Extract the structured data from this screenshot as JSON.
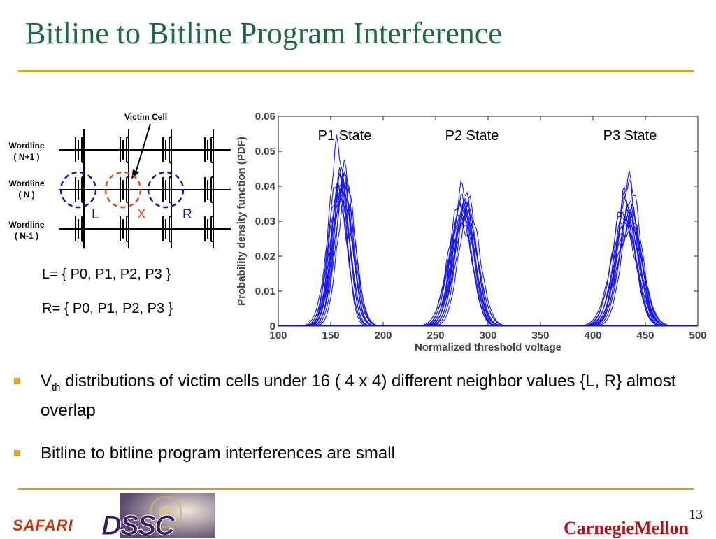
{
  "slide": {
    "title": "Bitline to Bitline Program Interference",
    "page_number": "13"
  },
  "diagram": {
    "victim_label": "Victim Cell",
    "wordline_top": [
      "Wordline",
      "( N+1 )"
    ],
    "wordline_mid": [
      "Wordline",
      "( N )"
    ],
    "wordline_bot": [
      "Wordline",
      "( N-1 )"
    ],
    "cell_left": "L",
    "cell_victim": "X",
    "cell_right": "R",
    "colors": {
      "neighbor": "#1a1aa0",
      "victim": "#e0501e"
    }
  },
  "sets": {
    "left": "L= { P0, P1, P2, P3 }",
    "right": "R= { P0, P1, P2, P3 }"
  },
  "chart_data": {
    "type": "line",
    "xlabel": "Normalized threshold voltage",
    "ylabel": "Probability density function (PDF)",
    "xlim": [
      100,
      500
    ],
    "ylim": [
      0,
      0.06
    ],
    "xticks": [
      100,
      150,
      200,
      250,
      300,
      350,
      400,
      450,
      500
    ],
    "yticks": [
      0,
      0.01,
      0.02,
      0.03,
      0.04,
      0.05,
      0.06
    ],
    "ytick_labels": [
      "0",
      "0.01",
      "0.02",
      "0.03",
      "0.04",
      "0.05",
      "0.06"
    ],
    "annotations": [
      "P1 State",
      "P2 State",
      "P3 State"
    ],
    "series_count": 16,
    "line_color": "#1a1aee",
    "peaks": [
      {
        "state": "P1",
        "center": 160,
        "sigma": 9,
        "heights": [
          0.052,
          0.045,
          0.044,
          0.043,
          0.042,
          0.041,
          0.041,
          0.04,
          0.04,
          0.039,
          0.039,
          0.038,
          0.038,
          0.037,
          0.036,
          0.042
        ]
      },
      {
        "state": "P2",
        "center": 277,
        "sigma": 10.5,
        "heights": [
          0.04,
          0.036,
          0.036,
          0.035,
          0.035,
          0.035,
          0.034,
          0.034,
          0.033,
          0.033,
          0.033,
          0.032,
          0.032,
          0.031,
          0.031,
          0.03
        ]
      },
      {
        "state": "P3",
        "center": 433,
        "sigma": 11,
        "heights": [
          0.042,
          0.041,
          0.037,
          0.035,
          0.034,
          0.033,
          0.033,
          0.032,
          0.032,
          0.031,
          0.031,
          0.03,
          0.03,
          0.029,
          0.028,
          0.027
        ]
      }
    ]
  },
  "bullets": [
    {
      "main": "V",
      "sub": "th",
      "rest": " distributions of victim cells under 16 ( 4 x 4) different neighbor values {L, R} almost overlap"
    },
    {
      "text": "Bitline to bitline program interferences are small"
    }
  ],
  "footer": {
    "safari": "SAFARI",
    "dssc": "DSSC",
    "cmu": "CarnegieMellon"
  }
}
